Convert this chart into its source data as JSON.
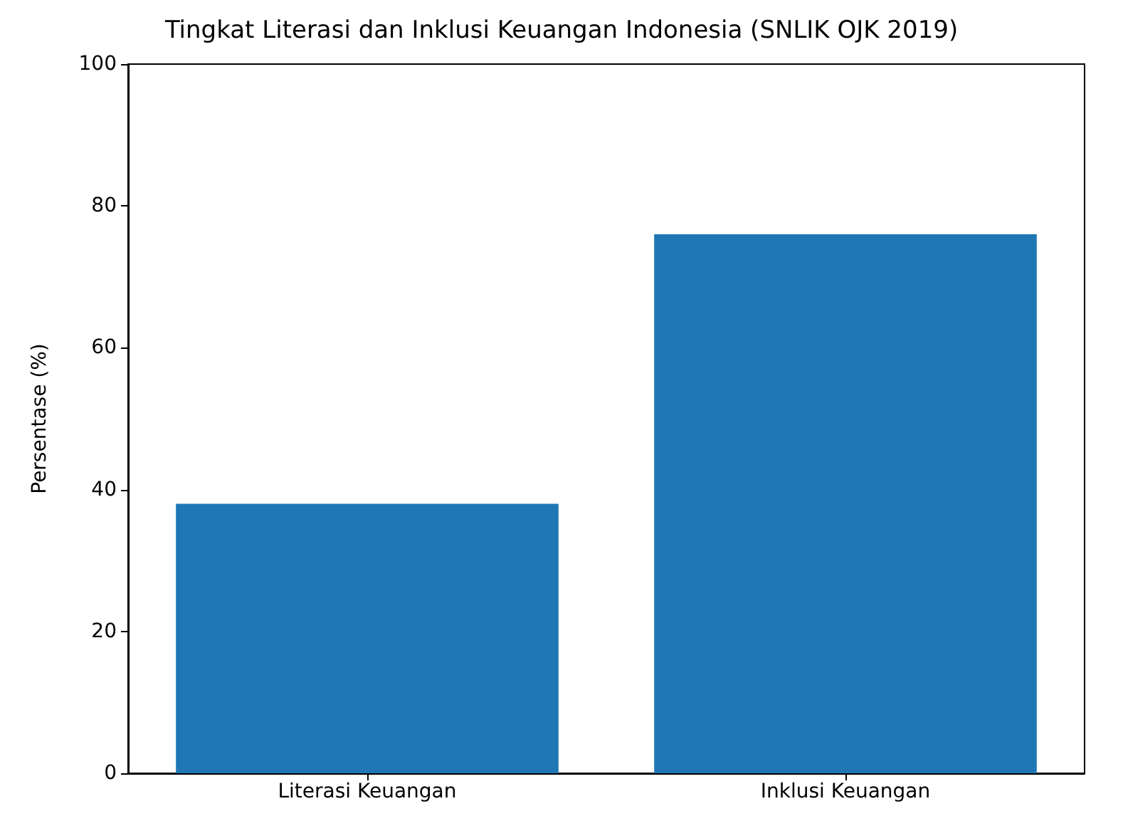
{
  "chart_data": {
    "type": "bar",
    "title": "Tingkat Literasi dan Inklusi Keuangan Indonesia (SNLIK OJK 2019)",
    "ylabel": "Persentase (%)",
    "categories": [
      "Literasi Keuangan",
      "Inklusi Keuangan"
    ],
    "values": [
      38,
      76
    ],
    "color": "#1f77b4",
    "ylim": [
      0,
      100
    ],
    "yticks": [
      0,
      20,
      40,
      60,
      80,
      100
    ],
    "grid": false
  }
}
